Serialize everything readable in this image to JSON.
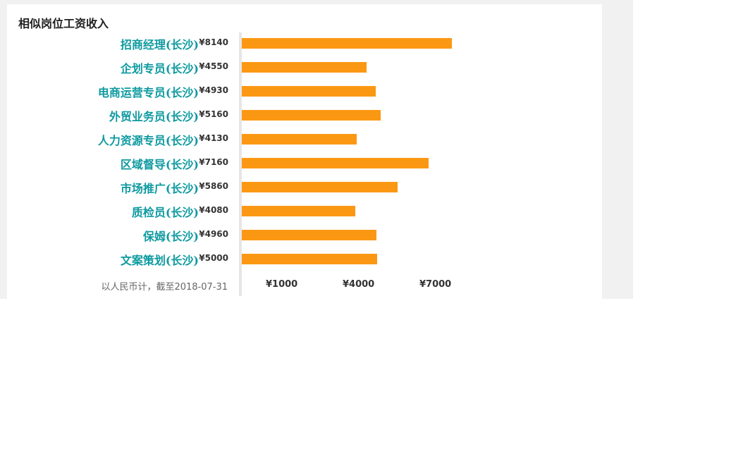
{
  "title": "相似岗位工资收入",
  "footnote": "以人民币计，截至2018-07-31",
  "colors": {
    "bar": "#fb9813",
    "job_link": "#0e9aa0",
    "background_band": "#f1f1f1"
  },
  "chart_data": {
    "type": "bar",
    "orientation": "horizontal",
    "categories": [
      "招商经理(长沙)",
      "企划专员(长沙)",
      "电商运营专员(长沙)",
      "外贸业务员(长沙)",
      "人力资源专员(长沙)",
      "区域督导(长沙)",
      "市场推广(长沙)",
      "质检员(长沙)",
      "保姆(长沙)",
      "文案策划(长沙)"
    ],
    "value_labels": [
      "¥8140",
      "¥4550",
      "¥4930",
      "¥5160",
      "¥4130",
      "¥7160",
      "¥5860",
      "¥4080",
      "¥4960",
      "¥5000"
    ],
    "values": [
      8140,
      4550,
      4930,
      5160,
      4130,
      7160,
      5860,
      4080,
      4960,
      5000
    ],
    "x_ticks": [
      "¥1000",
      "¥4000",
      "¥7000"
    ],
    "x_tick_values": [
      1000,
      4000,
      7000
    ],
    "grid": false
  }
}
